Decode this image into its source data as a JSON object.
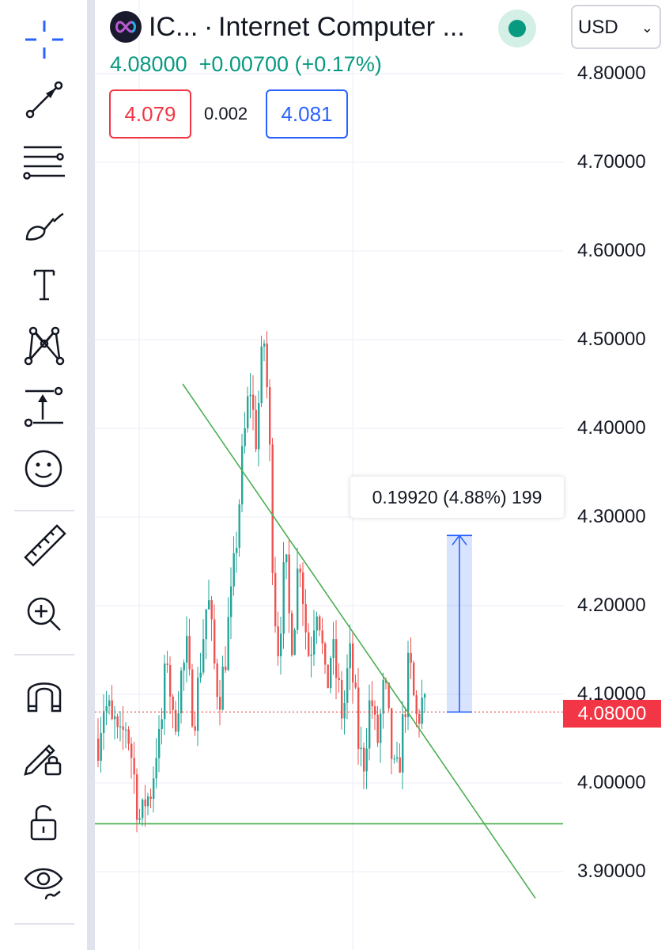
{
  "symbol": {
    "ticker": "IC...",
    "separator": "·",
    "name": "Internet Computer ...",
    "last_price": "4.08000",
    "change": "+0.00700",
    "change_pct": "(+0.17%)",
    "status": "market-open"
  },
  "quote": {
    "bid": "4.079",
    "spread": "0.002",
    "ask": "4.081"
  },
  "currency_selector": {
    "value": "USD",
    "icon": "chevron-down-icon"
  },
  "price_axis": {
    "labels": [
      "4.80000",
      "4.70000",
      "4.60000",
      "4.50000",
      "4.40000",
      "4.30000",
      "4.20000",
      "4.10000",
      "4.00000",
      "3.90000"
    ],
    "current_price": "4.08000"
  },
  "measure_tool": {
    "label": "0.19920 (4.88%) 199"
  },
  "toolbar": {
    "tools": [
      "crosshair-icon",
      "trend-line-icon",
      "fib-lines-icon",
      "brush-icon",
      "text-icon",
      "pattern-icon",
      "projection-icon",
      "emoji-icon",
      "ruler-icon",
      "zoom-in-icon",
      "magnet-icon",
      "lock-drawing-icon",
      "unlock-icon",
      "hide-drawings-icon"
    ]
  },
  "colors": {
    "up": "#26a69a",
    "down": "#ef5350",
    "trendline": "#4caf50",
    "measure": "#2962ff",
    "accent_green": "#089981"
  },
  "chart_data": {
    "type": "candlestick",
    "title": "",
    "ylabel": "",
    "ylim": [
      3.86,
      4.84
    ],
    "current_price": 4.08,
    "support_level": 3.954,
    "measure": {
      "from": 4.08,
      "to": 4.2792,
      "diff": 0.1992,
      "pct": 4.88,
      "bars": 199
    },
    "trendline": {
      "start_price": 4.45,
      "end_price": 3.87
    },
    "path": [
      4.05,
      4.07,
      4.09,
      4.085,
      4.08,
      4.06,
      4.07,
      4.05,
      4.04,
      4.05,
      4.07,
      4.06,
      4.04,
      4.02,
      3.99,
      3.97,
      3.95,
      3.97,
      3.99,
      3.98,
      4.0,
      4.02,
      4.05,
      4.04,
      4.08,
      4.12,
      4.15,
      4.1,
      4.06,
      4.08,
      4.1,
      4.12,
      4.13,
      4.15,
      4.11,
      4.09,
      4.08,
      4.1,
      4.13,
      4.16,
      4.19,
      4.21,
      4.18,
      4.14,
      4.12,
      4.1,
      4.11,
      4.13,
      4.16,
      4.19,
      4.21,
      4.25,
      4.29,
      4.33,
      4.37,
      4.4,
      4.43,
      4.45,
      4.41,
      4.39,
      4.43,
      4.47,
      4.5,
      4.45,
      4.38,
      4.27,
      4.2,
      4.15,
      4.18,
      4.22,
      4.25,
      4.2,
      4.16,
      4.18,
      4.21,
      4.27,
      4.24,
      4.19,
      4.16,
      4.14,
      4.17,
      4.2,
      4.21,
      4.18,
      4.14,
      4.1,
      4.12,
      4.15,
      4.14,
      4.12,
      4.1,
      4.08,
      4.09,
      4.12,
      4.14,
      4.12,
      4.09,
      4.05,
      4.03,
      4.02,
      4.05,
      4.08,
      4.1,
      4.07,
      4.04,
      4.06,
      4.09,
      4.11,
      4.08,
      4.05,
      4.02,
      4.0,
      4.01,
      4.04,
      4.07,
      4.1,
      4.13,
      4.12,
      4.09,
      4.07,
      4.08,
      4.09,
      4.08
    ]
  }
}
